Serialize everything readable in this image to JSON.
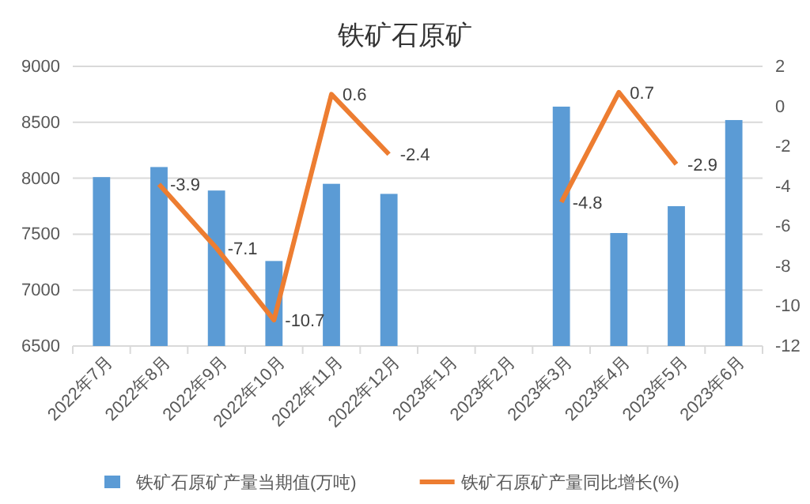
{
  "chart_data": {
    "type": "bar",
    "title": "铁矿石原矿",
    "categories": [
      "2022年7月",
      "2022年8月",
      "2022年9月",
      "2022年10月",
      "2022年11月",
      "2022年12月",
      "2023年1月",
      "2023年2月",
      "2023年3月",
      "2023年4月",
      "2023年5月",
      "2023年6月"
    ],
    "series": [
      {
        "name": "铁矿石原矿产量当期值(万吨)",
        "color": "#5b9bd5",
        "values": [
          8010,
          8100,
          7890,
          7260,
          7950,
          7860,
          null,
          null,
          8640,
          7510,
          7750,
          8520
        ]
      },
      {
        "name": "铁矿石原矿产量同比增长(%)",
        "type": "line",
        "axis": "y2",
        "color": "#ed7d31",
        "data_labels": true,
        "values": [
          null,
          -3.9,
          -7.1,
          -10.7,
          0.6,
          -2.4,
          null,
          null,
          -4.8,
          0.7,
          -2.9,
          null
        ]
      }
    ],
    "ylim": [
      6500,
      9000
    ],
    "yticks": [
      6500,
      7000,
      7500,
      8000,
      8500,
      9000
    ],
    "y2lim": [
      -12,
      2
    ],
    "y2ticks": [
      -12,
      -10,
      -8,
      -6,
      -4,
      -2,
      0,
      2
    ],
    "grid": "y",
    "legend": "bottom"
  }
}
